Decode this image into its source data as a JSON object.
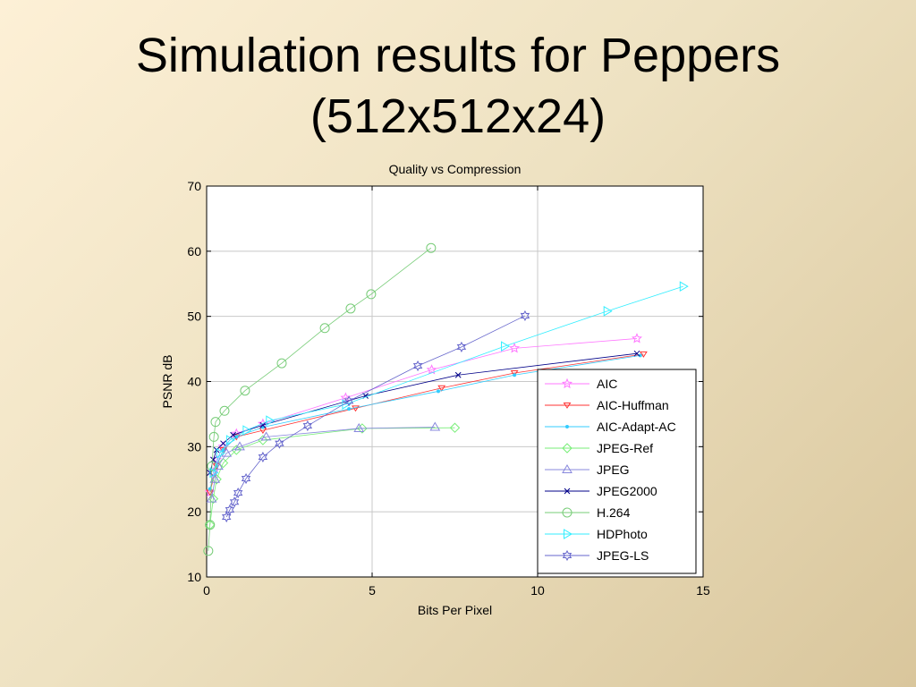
{
  "slide_title": "Simulation results for Peppers (512x512x24)",
  "chart_data": {
    "type": "line",
    "title": "Quality vs Compression",
    "x_label": "Bits Per Pixel",
    "y_label": "PSNR dB",
    "xlim": [
      0,
      15
    ],
    "xticks": [
      0,
      5,
      10,
      15
    ],
    "ylim": [
      10,
      70
    ],
    "yticks": [
      10,
      20,
      30,
      40,
      50,
      60,
      70
    ],
    "grid": true,
    "legend": "lower right",
    "series": [
      {
        "name": "AIC",
        "color": "#ff77ff",
        "marker": "star",
        "x": [
          0.1,
          0.2,
          0.3,
          0.5,
          0.9,
          1.7,
          4.2,
          6.8,
          9.3,
          13.0
        ],
        "values": [
          23,
          26,
          28,
          30,
          32,
          33.5,
          37.5,
          41.8,
          45.1,
          46.6
        ]
      },
      {
        "name": "AIC-Huffman",
        "color": "#ff3333",
        "marker": "triangle-down",
        "x": [
          0.1,
          0.3,
          0.5,
          0.9,
          1.7,
          4.5,
          7.1,
          9.3,
          13.2
        ],
        "values": [
          23,
          27,
          29.5,
          31.5,
          32.5,
          35.9,
          39,
          41.3,
          44.2
        ]
      },
      {
        "name": "AIC-Adapt-AC",
        "color": "#33ccff",
        "marker": "dot",
        "x": [
          0.1,
          0.3,
          0.5,
          0.9,
          1.7,
          4.3,
          7.0,
          9.3,
          13.1
        ],
        "values": [
          23.5,
          27,
          29.5,
          31.5,
          33,
          35.8,
          38.5,
          41,
          44
        ]
      },
      {
        "name": "JPEG-Ref",
        "color": "#77ee77",
        "marker": "diamond",
        "x": [
          0.1,
          0.2,
          0.3,
          0.5,
          0.9,
          1.7,
          4.7,
          7.5
        ],
        "values": [
          18,
          22,
          25,
          27.5,
          29.5,
          31,
          32.8,
          32.9
        ]
      },
      {
        "name": "JPEG",
        "color": "#8888dd",
        "marker": "triangle",
        "x": [
          0.15,
          0.25,
          0.35,
          0.6,
          1.0,
          1.8,
          4.6,
          6.9
        ],
        "values": [
          22,
          25,
          27,
          29,
          30,
          31.5,
          32.8,
          33
        ]
      },
      {
        "name": "JPEG2000",
        "color": "#000088",
        "marker": "x",
        "x": [
          0.1,
          0.2,
          0.3,
          0.5,
          0.8,
          1.7,
          4.8,
          7.6,
          13.0
        ],
        "values": [
          26,
          28,
          29.5,
          30.5,
          31.8,
          33.3,
          37.8,
          41,
          44.3
        ]
      },
      {
        "name": "H.264",
        "color": "#77cc77",
        "marker": "circle",
        "x": [
          0.05,
          0.1,
          0.16,
          0.22,
          0.27,
          0.54,
          1.16,
          2.27,
          3.57,
          4.35,
          4.97,
          6.78
        ],
        "values": [
          14,
          18,
          27,
          31.5,
          33.8,
          35.5,
          38.6,
          42.8,
          48.2,
          51.2,
          53.4,
          60.5
        ]
      },
      {
        "name": "HDPhoto",
        "color": "#33eeff",
        "marker": "triangle-right",
        "x": [
          0.2,
          0.4,
          0.7,
          1.2,
          1.9,
          4.2,
          9.0,
          12.1,
          14.4
        ],
        "values": [
          26,
          29,
          31,
          32.5,
          34,
          36.5,
          45.4,
          50.8,
          54.6
        ]
      },
      {
        "name": "JPEG-LS",
        "color": "#6666cc",
        "marker": "hexagram",
        "x": [
          0.6,
          0.7,
          0.84,
          0.95,
          1.19,
          1.7,
          2.2,
          3.05,
          4.3,
          6.38,
          7.7,
          9.62
        ],
        "values": [
          19.2,
          20.3,
          21.5,
          22.9,
          25.1,
          28.4,
          30.5,
          33.2,
          37,
          42.4,
          45.3,
          50.1
        ]
      }
    ]
  }
}
